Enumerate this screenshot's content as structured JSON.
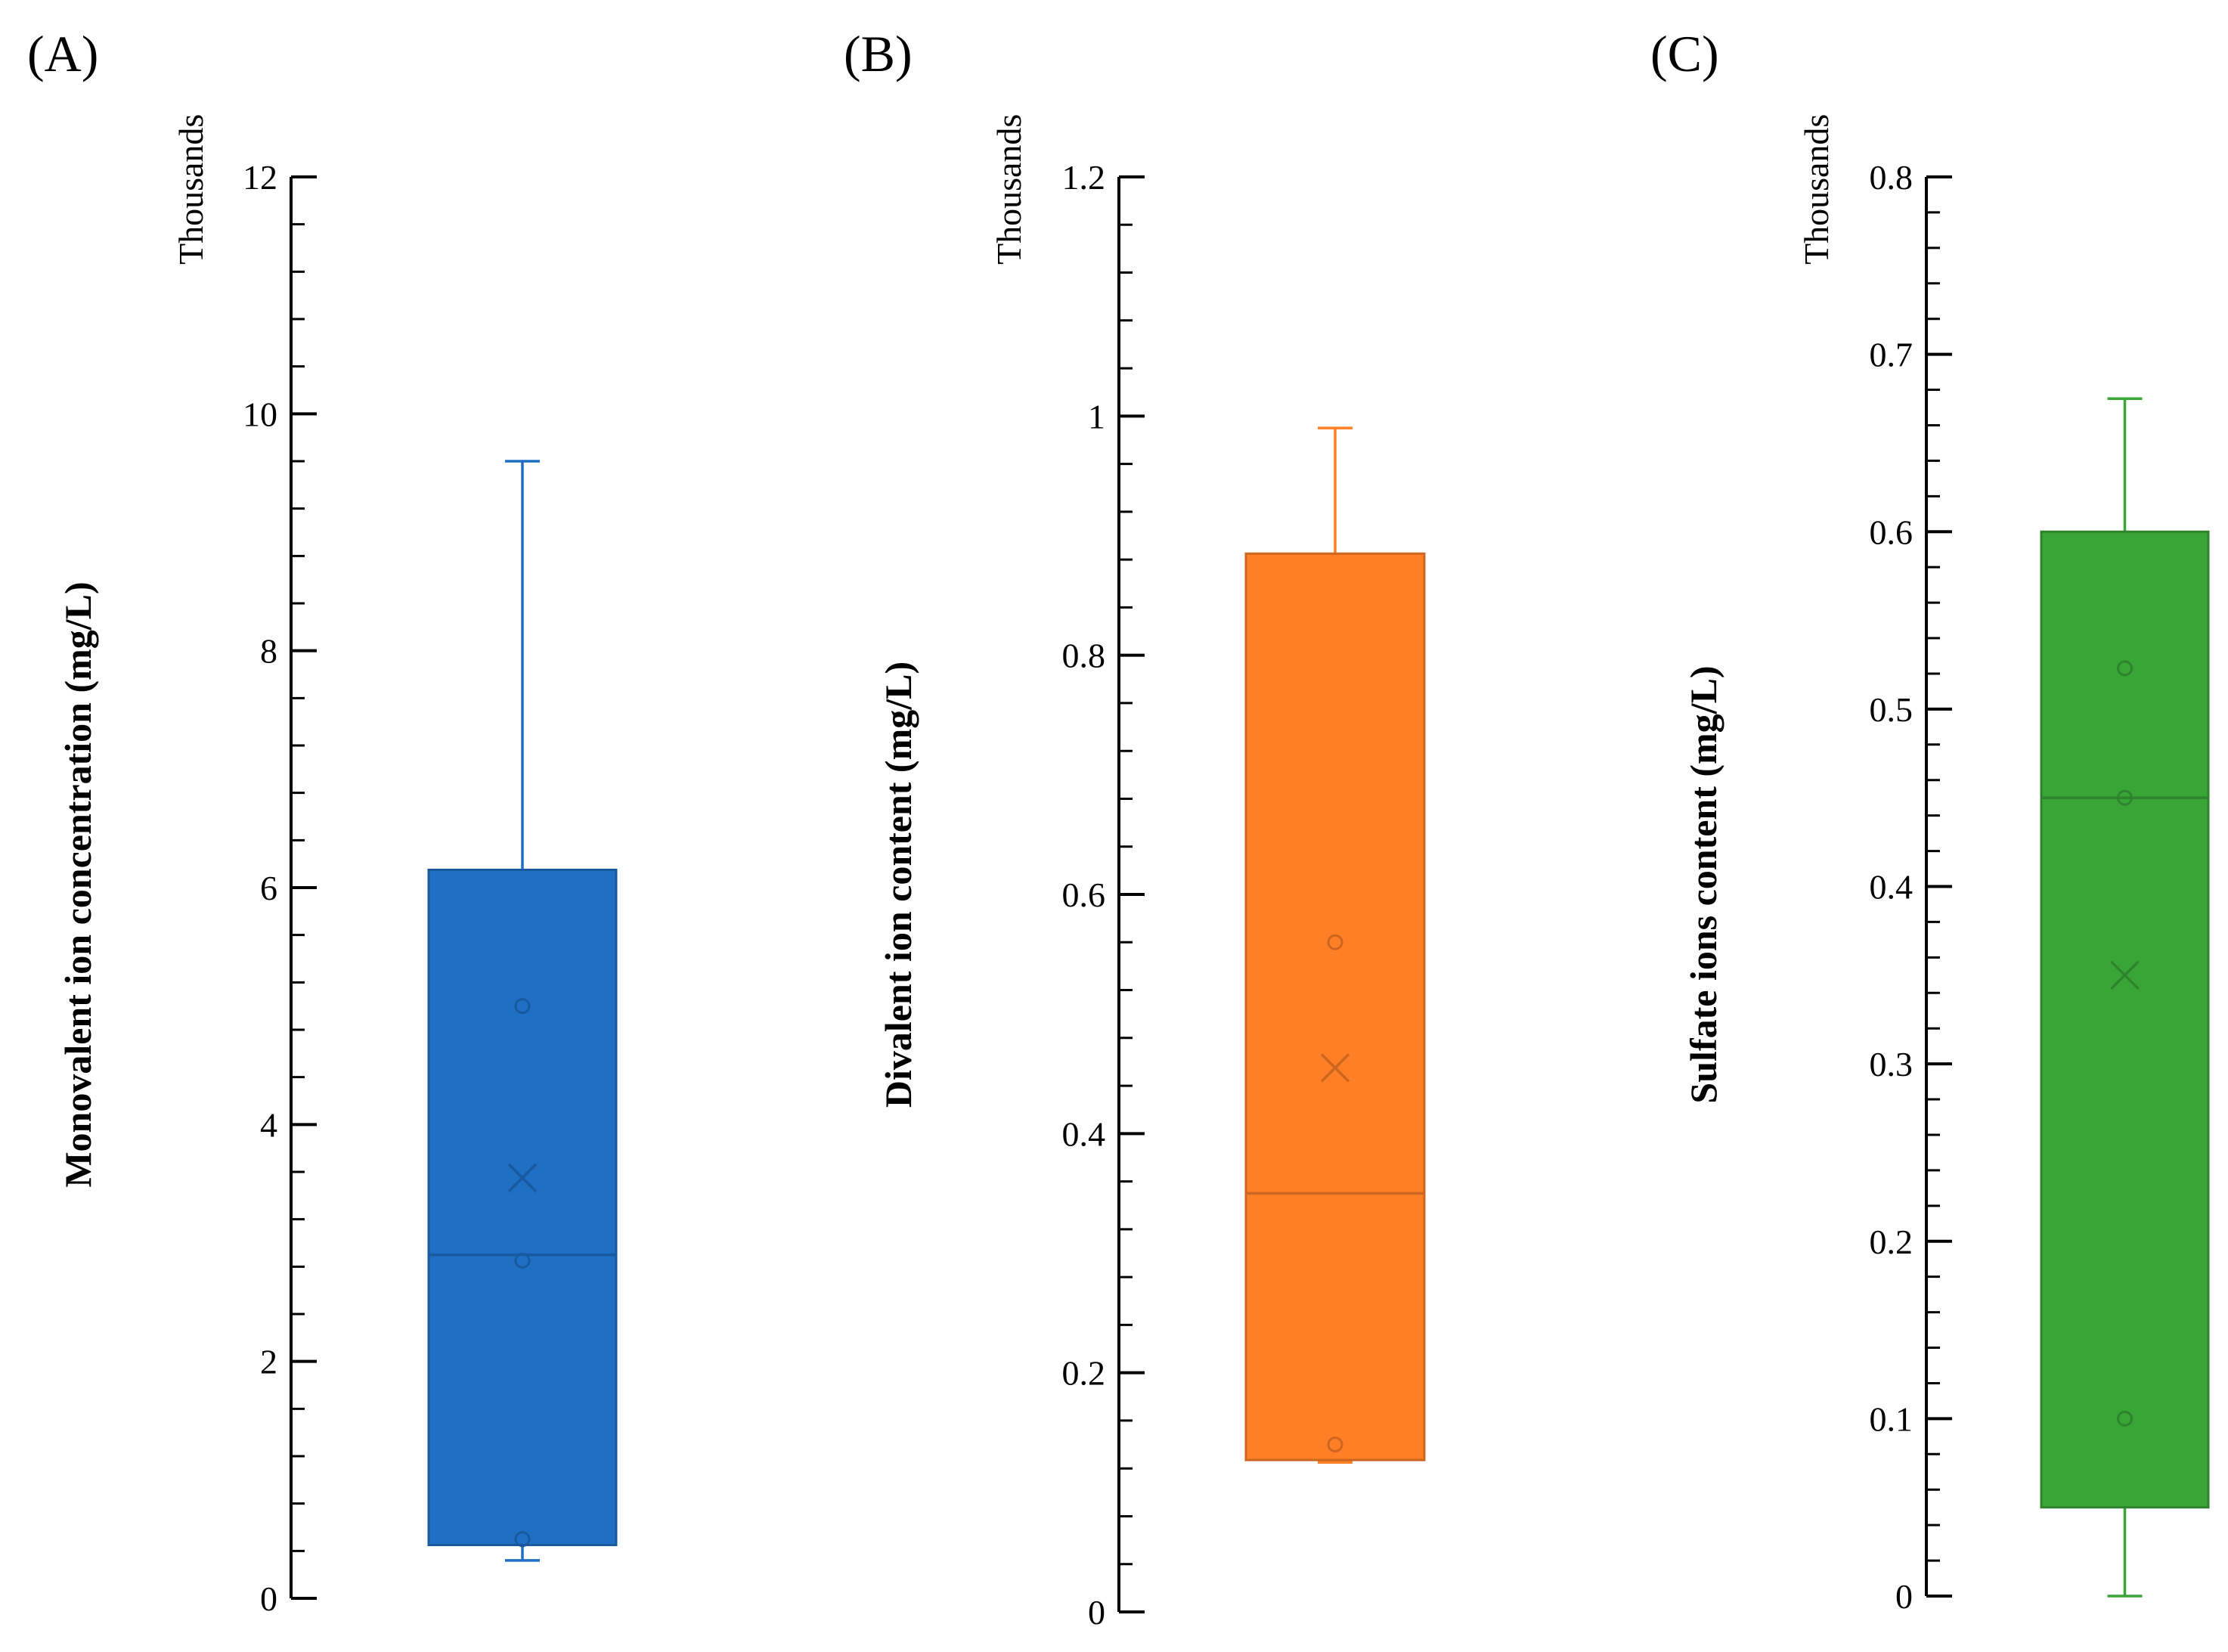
{
  "chart_data": [
    {
      "type": "box",
      "panel_label": "(A)",
      "units_label": "Thousands",
      "ylabel": "Monovalent ion concentration (mg/L)",
      "ylim": [
        0,
        12
      ],
      "yticks": [
        0,
        2,
        4,
        6,
        8,
        10,
        12
      ],
      "ytick_labels": [
        "0",
        "2",
        "4",
        "6",
        "8",
        "10",
        "12"
      ],
      "minor_per_major": 4,
      "color": "#1f6fc5",
      "box": {
        "whisker_low": 0.32,
        "q1": 0.45,
        "median": 2.9,
        "q3": 6.15,
        "whisker_high": 9.6,
        "mean": 3.55
      },
      "points": [
        0.5,
        2.85,
        5.0
      ]
    },
    {
      "type": "box",
      "panel_label": "(B)",
      "units_label": "Thousands",
      "ylabel": "Divalent ion content (mg/L)",
      "ylim": [
        0,
        1.2
      ],
      "yticks": [
        0,
        0.2,
        0.4,
        0.6,
        0.8,
        1,
        1.2
      ],
      "ytick_labels": [
        "0",
        "0.2",
        "0.4",
        "0.6",
        "0.8",
        "1",
        "1.2"
      ],
      "minor_per_major": 4,
      "color": "#ff7f27",
      "box": {
        "whisker_low": 0.125,
        "q1": 0.127,
        "median": 0.35,
        "q3": 0.885,
        "whisker_high": 0.99,
        "mean": 0.455
      },
      "points": [
        0.14,
        0.56
      ]
    },
    {
      "type": "box",
      "panel_label": "(C)",
      "units_label": "Thousands",
      "ylabel": "Sulfate ions content (mg/L)",
      "ylim": [
        0,
        0.8
      ],
      "yticks": [
        0,
        0.1,
        0.2,
        0.3,
        0.4,
        0.5,
        0.6,
        0.7,
        0.8
      ],
      "ytick_labels": [
        "0",
        "0.1",
        "0.2",
        "0.3",
        "0.4",
        "0.5",
        "0.6",
        "0.7",
        "0.8"
      ],
      "minor_per_major": 4,
      "color": "#3aa537",
      "box": {
        "whisker_low": 0.0,
        "q1": 0.05,
        "median": 0.45,
        "q3": 0.6,
        "whisker_high": 0.675,
        "mean": 0.35
      },
      "points": [
        0.1,
        0.45,
        0.523
      ]
    }
  ]
}
